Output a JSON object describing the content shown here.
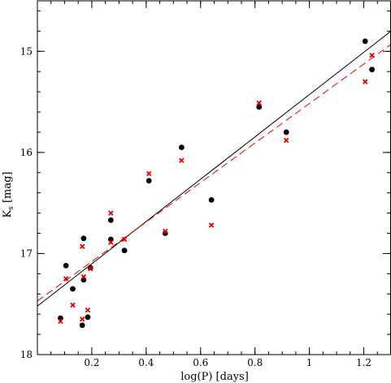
{
  "chart_data": {
    "type": "scatter",
    "title": "",
    "xlabel": "log(P) [days]",
    "ylabel": "K",
    "ylabel_subscript": "s",
    "ylabel_unit": "[mag]",
    "xlim": [
      0.0,
      1.3
    ],
    "ylim": [
      18.0,
      14.5
    ],
    "y_inverted": true,
    "grid": false,
    "x_ticks": [
      0.2,
      0.4,
      0.6,
      0.8,
      1.0,
      1.2
    ],
    "x_tick_labels": [
      "0.2",
      "0.4",
      "0.6",
      "0.8",
      "1",
      "1.2"
    ],
    "y_ticks": [
      15,
      16,
      17,
      18
    ],
    "y_tick_labels": [
      "15",
      "16",
      "17",
      "18"
    ],
    "series": [
      {
        "marker": "circle",
        "color": "#000000",
        "points": [
          [
            0.085,
            17.64
          ],
          [
            0.105,
            17.12
          ],
          [
            0.13,
            17.35
          ],
          [
            0.165,
            17.71
          ],
          [
            0.17,
            17.26
          ],
          [
            0.17,
            16.85
          ],
          [
            0.185,
            17.63
          ],
          [
            0.195,
            17.14
          ],
          [
            0.27,
            16.67
          ],
          [
            0.27,
            16.86
          ],
          [
            0.32,
            16.97
          ],
          [
            0.41,
            16.28
          ],
          [
            0.47,
            16.8
          ],
          [
            0.53,
            15.95
          ],
          [
            0.64,
            16.47
          ],
          [
            0.815,
            15.55
          ],
          [
            0.915,
            15.8
          ],
          [
            1.205,
            14.9
          ],
          [
            1.23,
            15.18
          ]
        ]
      },
      {
        "marker": "cross",
        "color": "#e00000",
        "points": [
          [
            0.085,
            17.67
          ],
          [
            0.105,
            17.25
          ],
          [
            0.13,
            17.51
          ],
          [
            0.165,
            17.65
          ],
          [
            0.165,
            16.93
          ],
          [
            0.17,
            17.23
          ],
          [
            0.185,
            17.56
          ],
          [
            0.195,
            17.15
          ],
          [
            0.27,
            16.6
          ],
          [
            0.27,
            16.89
          ],
          [
            0.32,
            16.86
          ],
          [
            0.41,
            16.21
          ],
          [
            0.47,
            16.78
          ],
          [
            0.53,
            16.08
          ],
          [
            0.64,
            16.72
          ],
          [
            0.815,
            15.51
          ],
          [
            0.915,
            15.88
          ],
          [
            1.205,
            15.3
          ],
          [
            1.23,
            15.04
          ]
        ]
      }
    ],
    "fits": [
      {
        "style": "solid",
        "color": "#000000",
        "x": [
          0.0,
          1.3
        ],
        "y": [
          17.52,
          14.8
        ]
      },
      {
        "style": "dashed",
        "color": "#e00000",
        "x": [
          0.0,
          1.3
        ],
        "y": [
          17.47,
          14.93
        ]
      }
    ]
  }
}
